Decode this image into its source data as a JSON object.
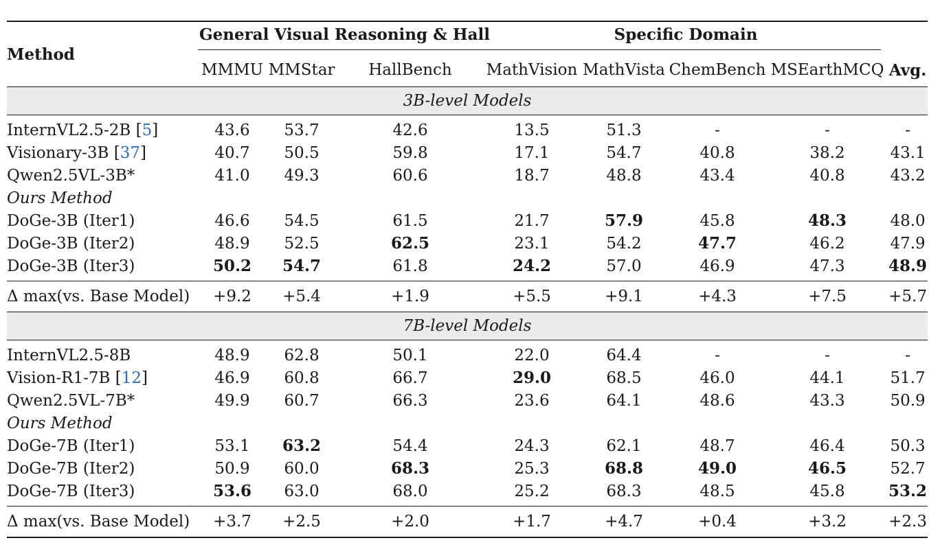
{
  "header": {
    "method": "Method",
    "group_general": "General Visual Reasoning & Hall",
    "group_specific": "Specific Domain",
    "columns": [
      "MMMU",
      "MMStar",
      "HallBench",
      "MathVision",
      "MathVista",
      "ChemBench",
      "MSEarthMCQ",
      "Avg."
    ]
  },
  "sections": [
    {
      "title": "3B-level Models",
      "baselines": [
        {
          "name": "InternVL2.5-2B [",
          "cite": "5",
          "close": "]",
          "values": [
            "43.6",
            "53.7",
            "42.6",
            "13.5",
            "51.3",
            "-",
            "-",
            "-"
          ]
        },
        {
          "name": "Visionary-3B [",
          "cite": "37",
          "close": "]",
          "values": [
            "40.7",
            "50.5",
            "59.8",
            "17.1",
            "54.7",
            "40.8",
            "38.2",
            "43.1"
          ]
        },
        {
          "name": "Qwen2.5VL-3B*",
          "cite": "",
          "close": "",
          "values": [
            "41.0",
            "49.3",
            "60.6",
            "18.7",
            "48.8",
            "43.4",
            "40.8",
            "43.2"
          ]
        }
      ],
      "ours_label": "Ours Method",
      "ours": [
        {
          "name": "DoGe-3B (Iter1)",
          "values": [
            "46.6",
            "54.5",
            "61.5",
            "21.7",
            "57.9",
            "45.8",
            "48.3",
            "48.0"
          ]
        },
        {
          "name": "DoGe-3B (Iter2)",
          "values": [
            "48.9",
            "52.5",
            "62.5",
            "23.1",
            "54.2",
            "47.7",
            "46.2",
            "47.9"
          ]
        },
        {
          "name": "DoGe-3B (Iter3)",
          "values": [
            "50.2",
            "54.7",
            "61.8",
            "24.2",
            "57.0",
            "46.9",
            "47.3",
            "48.9"
          ]
        }
      ],
      "delta": {
        "label": "Δ max(vs. Base Model)",
        "values": [
          "+9.2",
          "+5.4",
          "+1.9",
          "+5.5",
          "+9.1",
          "+4.3",
          "+7.5",
          "+5.7"
        ]
      }
    },
    {
      "title": "7B-level Models",
      "baselines": [
        {
          "name": "InternVL2.5-8B",
          "cite": "",
          "close": "",
          "values": [
            "48.9",
            "62.8",
            "50.1",
            "22.0",
            "64.4",
            "-",
            "-",
            "-"
          ]
        },
        {
          "name": "Vision-R1-7B [",
          "cite": "12",
          "close": "]",
          "values": [
            "46.9",
            "60.8",
            "66.7",
            "29.0",
            "68.5",
            "46.0",
            "44.1",
            "51.7"
          ]
        },
        {
          "name": "Qwen2.5VL-7B*",
          "cite": "",
          "close": "",
          "values": [
            "49.9",
            "60.7",
            "66.3",
            "23.6",
            "64.1",
            "48.6",
            "43.3",
            "50.9"
          ]
        }
      ],
      "ours_label": "Ours Method",
      "ours": [
        {
          "name": "DoGe-7B (Iter1)",
          "values": [
            "53.1",
            "63.2",
            "54.4",
            "24.3",
            "62.1",
            "48.7",
            "46.4",
            "50.3"
          ]
        },
        {
          "name": "DoGe-7B (Iter2)",
          "values": [
            "50.9",
            "60.0",
            "68.3",
            "25.3",
            "68.8",
            "49.0",
            "46.5",
            "52.7"
          ]
        },
        {
          "name": "DoGe-7B (Iter3)",
          "values": [
            "53.6",
            "63.0",
            "68.0",
            "25.2",
            "68.3",
            "48.5",
            "45.8",
            "53.2"
          ]
        }
      ],
      "delta": {
        "label": "Δ max(vs. Base Model)",
        "values": [
          "+3.7",
          "+2.5",
          "+2.0",
          "+1.7",
          "+4.7",
          "+0.4",
          "+3.2",
          "+2.3"
        ]
      }
    }
  ],
  "bold_cells": {
    "section0": {
      "b2": [],
      "o0": [
        4,
        6
      ],
      "o1": [
        2,
        5
      ],
      "o2": [
        0,
        1,
        3,
        7
      ]
    },
    "section1": {
      "b1": [
        3
      ],
      "o0": [
        1
      ],
      "o1": [
        2,
        4,
        5,
        6
      ],
      "o2": [
        0,
        7
      ]
    }
  }
}
